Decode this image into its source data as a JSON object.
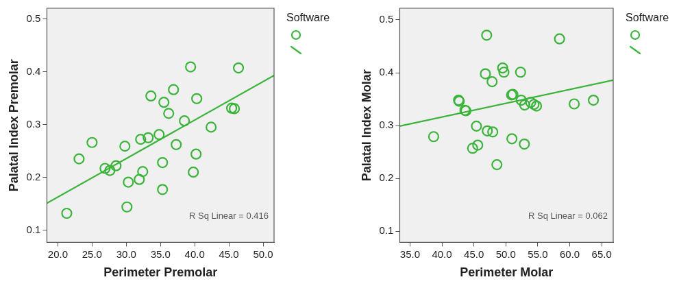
{
  "chart_data": [
    {
      "type": "scatter",
      "xlabel": "Perimeter Premolar",
      "ylabel": "Palatal Index Premolar",
      "legend_title": "Software",
      "grid": false,
      "xlim": [
        18.4,
        51.6
      ],
      "xticks": [
        {
          "value": 20,
          "label": "20.0"
        },
        {
          "value": 25,
          "label": "25.0"
        },
        {
          "value": 30,
          "label": "30.0"
        },
        {
          "value": 35,
          "label": "35.0"
        },
        {
          "value": 40,
          "label": "40.0"
        },
        {
          "value": 45,
          "label": "45.0"
        },
        {
          "value": 50,
          "label": "50.0"
        }
      ],
      "ylim": [
        0.077,
        0.52
      ],
      "yticks": [
        0.1,
        0.2,
        0.3,
        0.4,
        0.5
      ],
      "annotations": [
        "R Sq Linear = 0.416"
      ],
      "series": [
        {
          "type": "scatter",
          "marker": "circle",
          "color": "#3cb43c",
          "x": [
            21.3,
            23.1,
            25.0,
            26.9,
            27.6,
            28.5,
            29.8,
            30.1,
            30.3,
            31.9,
            32.1,
            32.4,
            33.2,
            33.6,
            34.8,
            35.3,
            35.3,
            35.5,
            36.2,
            36.9,
            37.3,
            38.5,
            39.4,
            39.8,
            40.2,
            40.3,
            42.4,
            45.4,
            45.8,
            46.4
          ],
          "values": [
            0.132,
            0.235,
            0.266,
            0.217,
            0.213,
            0.222,
            0.259,
            0.144,
            0.191,
            0.196,
            0.272,
            0.211,
            0.275,
            0.354,
            0.281,
            0.228,
            0.177,
            0.342,
            0.321,
            0.366,
            0.262,
            0.307,
            0.409,
            0.21,
            0.244,
            0.349,
            0.295,
            0.331,
            0.33,
            0.407
          ]
        },
        {
          "type": "line",
          "color": "#3cb43c",
          "x": [
            18.4,
            51.6
          ],
          "values": [
            0.151,
            0.393
          ]
        }
      ]
    },
    {
      "type": "scatter",
      "xlabel": "Perimeter Molar",
      "ylabel": "Palatal Index Molar",
      "legend_title": "Software",
      "grid": false,
      "xlim": [
        33.4,
        66.8
      ],
      "xticks": [
        {
          "value": 35,
          "label": "35.0"
        },
        {
          "value": 40,
          "label": "40.0"
        },
        {
          "value": 45,
          "label": "45.0"
        },
        {
          "value": 50,
          "label": "50.0"
        },
        {
          "value": 55,
          "label": "55.0"
        },
        {
          "value": 60,
          "label": "60.0"
        },
        {
          "value": 65,
          "label": "65.0"
        }
      ],
      "ylim": [
        0.079,
        0.522
      ],
      "yticks": [
        0.1,
        0.2,
        0.3,
        0.4,
        0.5
      ],
      "annotations": [
        "R Sq Linear = 0.062"
      ],
      "series": [
        {
          "type": "scatter",
          "marker": "circle",
          "color": "#3cb43c",
          "x": [
            38.7,
            42.6,
            42.7,
            43.6,
            43.75,
            44.8,
            45.4,
            45.6,
            46.8,
            47.0,
            47.1,
            47.95,
            47.85,
            48.6,
            49.5,
            49.7,
            50.9,
            51.1,
            50.95,
            52.3,
            52.4,
            52.95,
            52.9,
            53.9,
            54.4,
            54.8,
            58.4,
            60.7,
            63.7
          ],
          "values": [
            0.279,
            0.348,
            0.346,
            0.329,
            0.328,
            0.257,
            0.299,
            0.263,
            0.398,
            0.471,
            0.29,
            0.288,
            0.383,
            0.226,
            0.409,
            0.401,
            0.358,
            0.359,
            0.275,
            0.401,
            0.348,
            0.339,
            0.265,
            0.344,
            0.34,
            0.337,
            0.464,
            0.341,
            0.348
          ]
        },
        {
          "type": "line",
          "color": "#3cb43c",
          "x": [
            33.4,
            66.8
          ],
          "values": [
            0.299,
            0.386
          ]
        }
      ]
    }
  ]
}
